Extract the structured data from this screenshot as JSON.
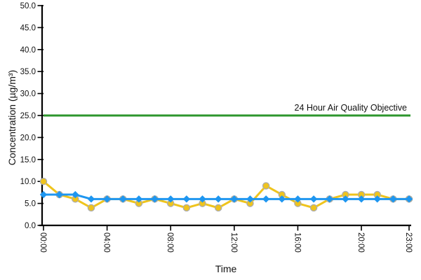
{
  "chart_data": {
    "type": "line",
    "title": "",
    "xlabel": "Time",
    "ylabel": "Concentration (µg/m³)",
    "ylim": [
      0,
      50
    ],
    "y_tick_step": 5,
    "y_tick_labels": [
      "0.0",
      "5.0",
      "10.0",
      "15.0",
      "20.0",
      "25.0",
      "30.0",
      "35.0",
      "40.0",
      "45.0",
      "50.0"
    ],
    "x_hours_range": [
      0,
      23
    ],
    "x_ticks": [
      {
        "hour": 0,
        "label": "00:00"
      },
      {
        "hour": 4,
        "label": "04:00"
      },
      {
        "hour": 8,
        "label": "08:00"
      },
      {
        "hour": 12,
        "label": "12:00"
      },
      {
        "hour": 16,
        "label": "16:00"
      },
      {
        "hour": 20,
        "label": "20:00"
      },
      {
        "hour": 23,
        "label": "23:00"
      }
    ],
    "grid": "off",
    "legend": "none",
    "background": "#ffffff",
    "axis_color": "#000000",
    "reference_line": {
      "value": 25,
      "label": "24 Hour Air Quality Objective",
      "color": "#2d962d"
    },
    "series": [
      {
        "id": "yellow-series",
        "color": "#efc41d",
        "marker": "circle",
        "marker_stroke": "#adadad",
        "values": [
          10,
          7,
          6,
          4,
          6,
          6,
          5,
          6,
          5,
          4,
          5,
          4,
          6,
          5,
          9,
          7,
          5,
          4,
          6,
          7,
          7,
          7,
          6,
          6
        ]
      },
      {
        "id": "blue-series",
        "color": "#1e96f0",
        "marker": "diamond",
        "marker_stroke": "none",
        "values": [
          7,
          7,
          7,
          6,
          6,
          6,
          6,
          6,
          6,
          6,
          6,
          6,
          6,
          6,
          6,
          6,
          6,
          6,
          6,
          6,
          6,
          6,
          6,
          6
        ]
      }
    ]
  }
}
